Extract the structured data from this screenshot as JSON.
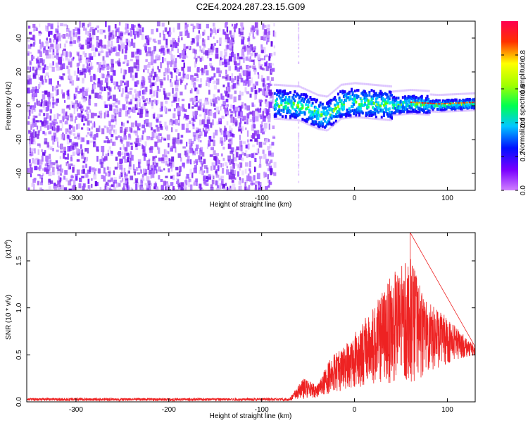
{
  "page_title": "C2E4.2024.287.23.15.G09",
  "chart_data": [
    {
      "type": "heatmap",
      "xlabel": "Height of straight line (km)",
      "ylabel": "Frequency (Hz)",
      "xlim": [
        -353,
        130
      ],
      "ylim": [
        -50,
        50
      ],
      "xticks": [
        -300,
        -200,
        -100,
        0,
        100
      ],
      "yticks": [
        -40,
        -20,
        0,
        20,
        40
      ],
      "colorbar": {
        "label": "Normalized spectral amplitude",
        "range": [
          0,
          1
        ],
        "ticks": [
          "0.0",
          "0.2",
          "0.4",
          "0.6",
          "0.8"
        ],
        "colors": [
          "#c070ff",
          "#6a00ff",
          "#0000ff",
          "#00c0ff",
          "#00ff60",
          "#ffff00",
          "#ff0000"
        ]
      },
      "noise_region": {
        "x": [
          -353,
          -87
        ],
        "y": [
          -50,
          50
        ]
      },
      "signal_center": [
        {
          "x": -85,
          "f": 2
        },
        {
          "x": -60,
          "f": 1
        },
        {
          "x": -40,
          "f": -4
        },
        {
          "x": -30,
          "f": -5
        },
        {
          "x": -15,
          "f": 2
        },
        {
          "x": 0,
          "f": 3
        },
        {
          "x": 20,
          "f": 2
        },
        {
          "x": 40,
          "f": 1
        },
        {
          "x": 60,
          "f": 2
        },
        {
          "x": 90,
          "f": 1
        },
        {
          "x": 130,
          "f": 2
        }
      ]
    },
    {
      "type": "line",
      "xlabel": "Height of straight line (km)",
      "ylabel": "SNR (10 * v/v)",
      "multiplier": "(x10",
      "multiplier_exp": "4",
      "multiplier_close": ")",
      "xlim": [
        -353,
        130
      ],
      "ylim": [
        0,
        1.8
      ],
      "xticks": [
        -300,
        -200,
        -100,
        0,
        100
      ],
      "yticks": [
        "0.0",
        "0.5",
        "1.0",
        "1.5"
      ],
      "line_color": "#ee2222",
      "envelope": [
        {
          "x": -353,
          "y": 0.04
        },
        {
          "x": -150,
          "y": 0.04
        },
        {
          "x": -70,
          "y": 0.04
        },
        {
          "x": -55,
          "y": 0.25
        },
        {
          "x": -40,
          "y": 0.18
        },
        {
          "x": -25,
          "y": 0.5
        },
        {
          "x": -10,
          "y": 0.6
        },
        {
          "x": 0,
          "y": 0.75
        },
        {
          "x": 20,
          "y": 1.0
        },
        {
          "x": 40,
          "y": 1.35
        },
        {
          "x": 60,
          "y": 1.55
        },
        {
          "x": 75,
          "y": 1.1
        },
        {
          "x": 100,
          "y": 0.9
        },
        {
          "x": 115,
          "y": 0.75
        },
        {
          "x": 130,
          "y": 0.6
        }
      ],
      "baseline": [
        {
          "x": -353,
          "y": 0.01
        },
        {
          "x": -70,
          "y": 0.01
        },
        {
          "x": -40,
          "y": 0.05
        },
        {
          "x": -20,
          "y": 0.1
        },
        {
          "x": 0,
          "y": 0.15
        },
        {
          "x": 30,
          "y": 0.2
        },
        {
          "x": 60,
          "y": 0.2
        },
        {
          "x": 90,
          "y": 0.35
        },
        {
          "x": 110,
          "y": 0.45
        },
        {
          "x": 130,
          "y": 0.5
        }
      ],
      "peak": {
        "x": 60,
        "y": 1.8
      }
    }
  ]
}
